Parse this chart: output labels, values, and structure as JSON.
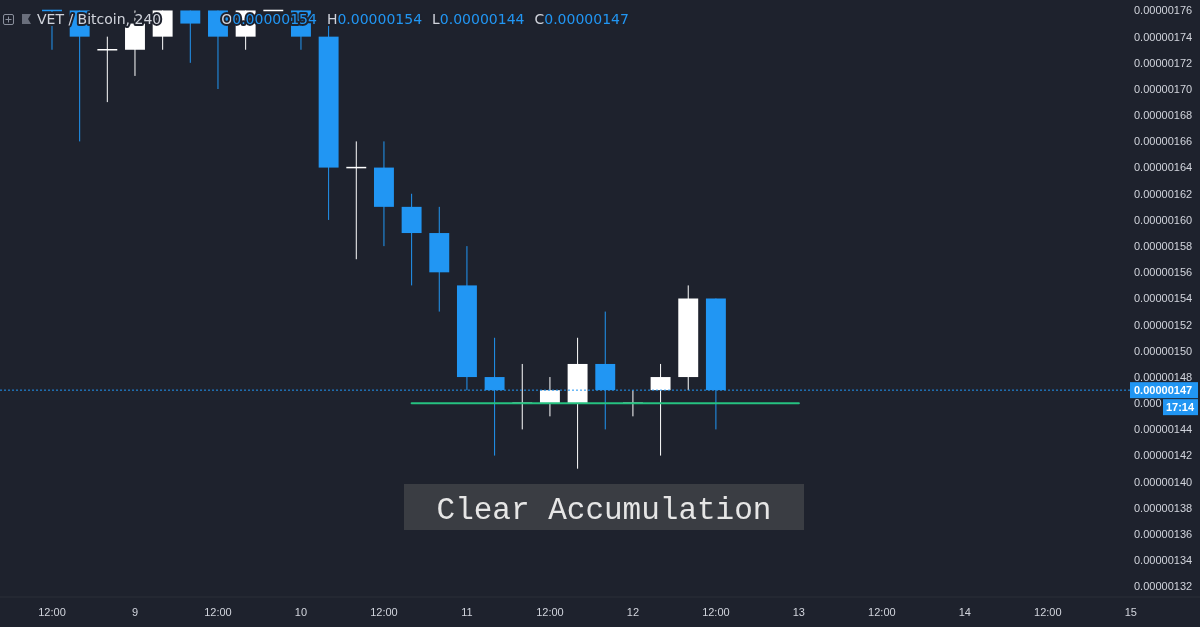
{
  "chart_data": {
    "type": "candlestick",
    "title": "VET / Bitcoin, 240",
    "subtitle": "O0.00000154 H0.00000154 L0.00000144 C0.00000147",
    "categories": [
      null,
      "12:00",
      null,
      null,
      "9",
      null,
      null,
      "12:00",
      null,
      null,
      "10",
      null,
      null,
      "12:00",
      null,
      null,
      "11",
      null,
      null,
      "12:00",
      null,
      null,
      "12",
      null,
      null,
      "12:00",
      null,
      null,
      "13",
      null,
      null,
      "12:00",
      null,
      null,
      "14",
      null,
      null,
      "12:00",
      null,
      null,
      "15",
      null,
      null
    ],
    "ohlc": [
      null,
      [
        1.76e-06,
        1.76e-06,
        1.73e-06,
        1.76e-06
      ],
      [
        1.76e-06,
        1.76e-06,
        1.66e-06,
        1.74e-06
      ],
      [
        1.73e-06,
        1.74e-06,
        1.69e-06,
        1.73e-06
      ],
      [
        1.73e-06,
        1.76e-06,
        1.71e-06,
        1.75e-06
      ],
      [
        1.74e-06,
        1.76e-06,
        1.73e-06,
        1.76e-06
      ],
      [
        1.76e-06,
        1.76e-06,
        1.72e-06,
        1.75e-06
      ],
      [
        1.76e-06,
        1.76e-06,
        1.7e-06,
        1.74e-06
      ],
      [
        1.74e-06,
        1.76e-06,
        1.73e-06,
        1.76e-06
      ],
      [
        1.76e-06,
        1.76e-06,
        1.76e-06,
        1.76e-06
      ],
      [
        1.76e-06,
        1.76e-06,
        1.73e-06,
        1.74e-06
      ],
      [
        1.74e-06,
        1.75e-06,
        1.6e-06,
        1.64e-06
      ],
      [
        1.64e-06,
        1.66e-06,
        1.57e-06,
        1.64e-06
      ],
      [
        1.64e-06,
        1.66e-06,
        1.58e-06,
        1.61e-06
      ],
      [
        1.61e-06,
        1.62e-06,
        1.55e-06,
        1.59e-06
      ],
      [
        1.59e-06,
        1.61e-06,
        1.53e-06,
        1.56e-06
      ],
      [
        1.55e-06,
        1.58e-06,
        1.47e-06,
        1.48e-06
      ],
      [
        1.48e-06,
        1.51e-06,
        1.42e-06,
        1.47e-06
      ],
      [
        1.46e-06,
        1.49e-06,
        1.44e-06,
        1.46e-06
      ],
      [
        1.46e-06,
        1.48e-06,
        1.45e-06,
        1.47e-06
      ],
      [
        1.46e-06,
        1.51e-06,
        1.41e-06,
        1.49e-06
      ],
      [
        1.49e-06,
        1.53e-06,
        1.44e-06,
        1.47e-06
      ],
      [
        1.46e-06,
        1.47e-06,
        1.45e-06,
        1.46e-06
      ],
      [
        1.47e-06,
        1.49e-06,
        1.42e-06,
        1.48e-06
      ],
      [
        1.48e-06,
        1.55e-06,
        1.47e-06,
        1.54e-06
      ],
      [
        1.54e-06,
        1.54e-06,
        1.44e-06,
        1.47e-06
      ],
      null,
      null,
      null,
      null,
      null,
      null,
      null,
      null,
      null,
      null,
      null,
      null,
      null,
      null,
      null,
      null,
      null
    ],
    "colors": [
      null,
      "#2196f3",
      "#2196f3",
      "#ffffff",
      "#ffffff",
      "#ffffff",
      "#2196f3",
      "#2196f3",
      "#ffffff",
      "#ffffff",
      "#2196f3",
      "#2196f3",
      "#ffffff",
      "#2196f3",
      "#2196f3",
      "#2196f3",
      "#2196f3",
      "#2196f3",
      "#ffffff",
      "#ffffff",
      "#ffffff",
      "#2196f3",
      "#ffffff",
      "#ffffff",
      "#ffffff",
      "#2196f3",
      null,
      null,
      null,
      null,
      null,
      null,
      null,
      null,
      null,
      null,
      null,
      null,
      null,
      null,
      null,
      null,
      null
    ],
    "series": [
      {
        "type": "line",
        "color": "#26c281",
        "values": [
          null,
          null,
          null,
          null,
          null,
          null,
          null,
          null,
          null,
          null,
          null,
          null,
          null,
          null,
          1.46e-06,
          1.46e-06,
          1.46e-06,
          1.46e-06,
          1.46e-06,
          1.46e-06,
          1.46e-06,
          1.46e-06,
          1.46e-06,
          1.46e-06,
          1.46e-06,
          1.46e-06,
          1.46e-06,
          1.46e-06,
          1.46e-06,
          null,
          null,
          null,
          null,
          null,
          null,
          null,
          null,
          null,
          null,
          null,
          null,
          null,
          null
        ]
      }
    ],
    "ylim": [
      1.312e-06,
      1.768e-06
    ],
    "yticks": [
      {
        "value": 1.32e-06,
        "label": "0.00000132"
      },
      {
        "value": 1.34e-06,
        "label": "0.00000134"
      },
      {
        "value": 1.36e-06,
        "label": "0.00000136"
      },
      {
        "value": 1.38e-06,
        "label": "0.00000138"
      },
      {
        "value": 1.4e-06,
        "label": "0.00000140"
      },
      {
        "value": 1.42e-06,
        "label": "0.00000142"
      },
      {
        "value": 1.44e-06,
        "label": "0.00000144"
      },
      {
        "value": 1.46e-06,
        "label": "0.000"
      },
      {
        "value": 1.48e-06,
        "label": "0.00000148"
      },
      {
        "value": 1.5e-06,
        "label": "0.00000150"
      },
      {
        "value": 1.52e-06,
        "label": "0.00000152"
      },
      {
        "value": 1.54e-06,
        "label": "0.00000154"
      },
      {
        "value": 1.56e-06,
        "label": "0.00000156"
      },
      {
        "value": 1.58e-06,
        "label": "0.00000158"
      },
      {
        "value": 1.6e-06,
        "label": "0.00000160"
      },
      {
        "value": 1.62e-06,
        "label": "0.00000162"
      },
      {
        "value": 1.64e-06,
        "label": "0.00000164"
      },
      {
        "value": 1.66e-06,
        "label": "0.00000166"
      },
      {
        "value": 1.68e-06,
        "label": "0.00000168"
      },
      {
        "value": 1.7e-06,
        "label": "0.00000170"
      },
      {
        "value": 1.72e-06,
        "label": "0.00000172"
      },
      {
        "value": 1.74e-06,
        "label": "0.00000174"
      },
      {
        "value": 1.76e-06,
        "label": "0.00000176"
      }
    ],
    "ref_lines": [
      {
        "axis": "y",
        "value": 1.47e-06,
        "label": "0.00000147",
        "color": "#2196f3"
      }
    ],
    "annotations": [
      "Clear Accumulation",
      "17:14"
    ],
    "grid": false
  }
}
